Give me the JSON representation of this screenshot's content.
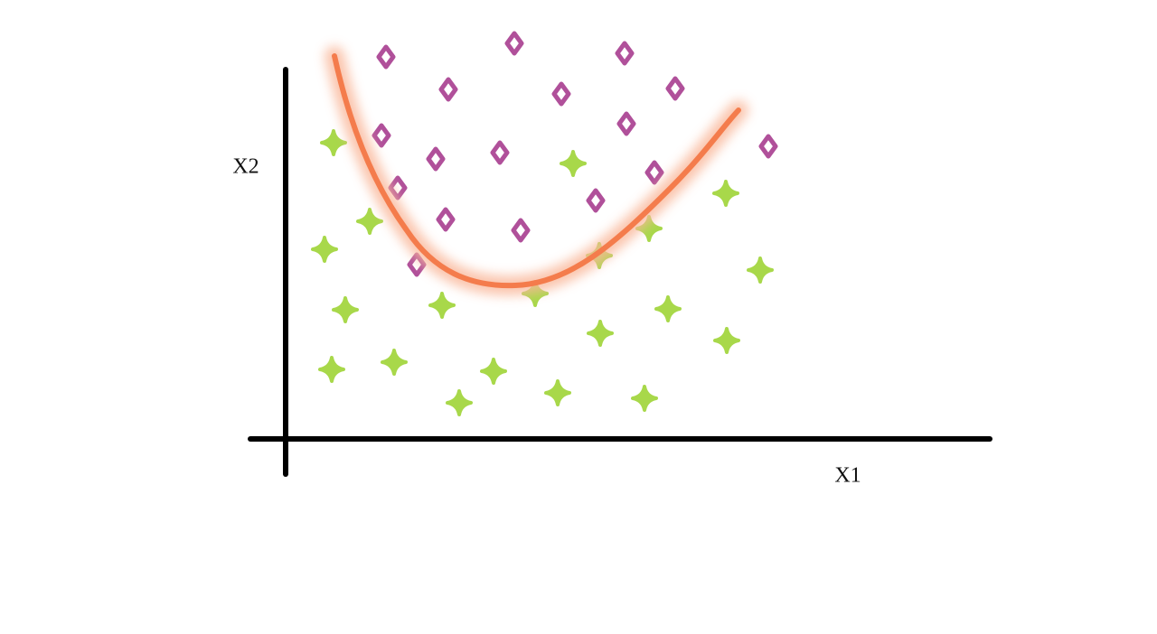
{
  "axes": {
    "x_label": "X1",
    "y_label": "X2"
  }
}
